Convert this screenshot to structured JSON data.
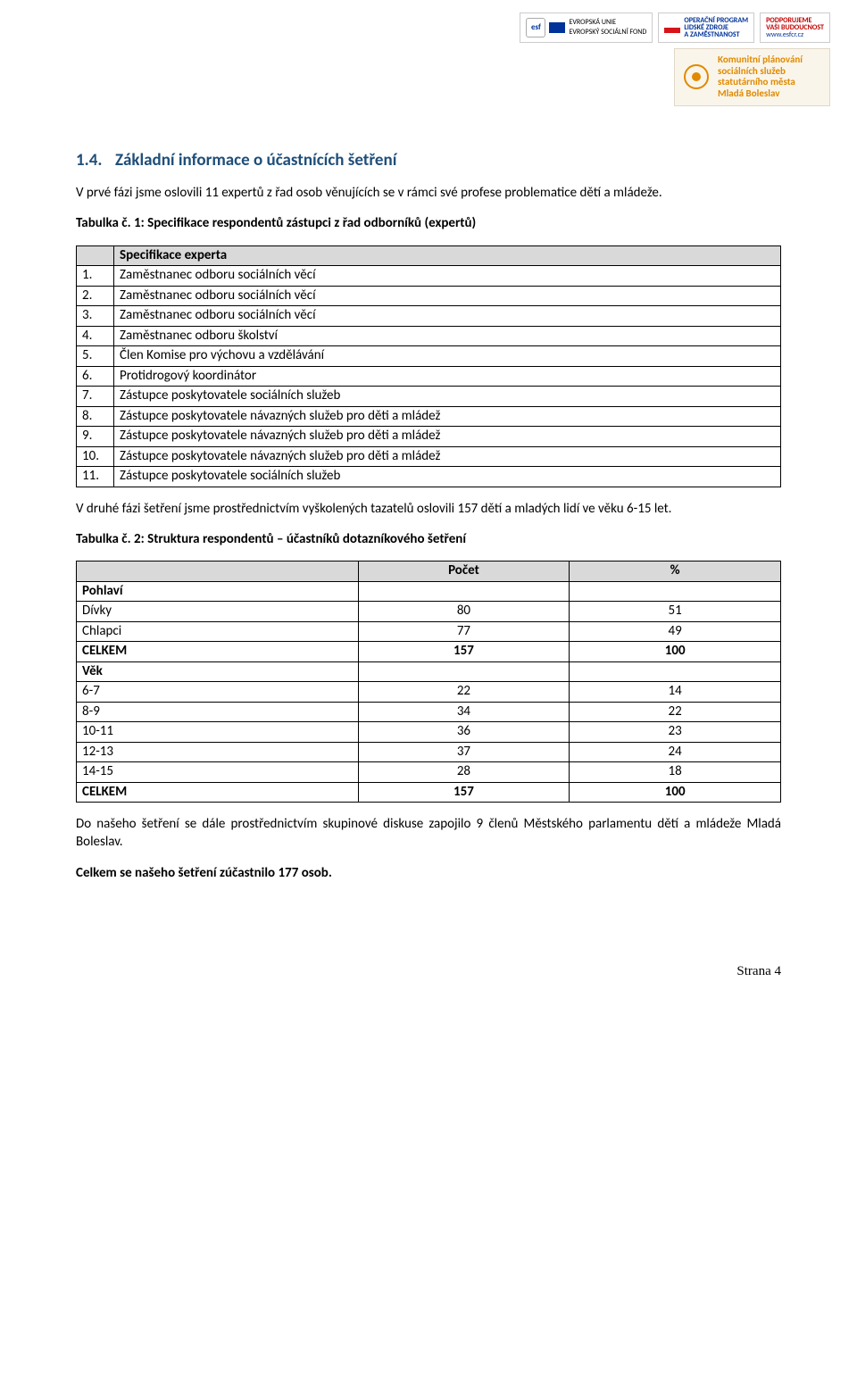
{
  "header": {
    "logo1_esf": "esf",
    "logo1_eu1": "EVROPSKÁ UNIE",
    "logo1_eu2": "EVROPSKÝ SOCIÁLNÍ FOND",
    "logo2_l1": "OPERAČNÍ PROGRAM",
    "logo2_l2": "LIDSKÉ ZDROJE",
    "logo2_l3": "A ZAMĚSTNANOST",
    "logo3_l1": "PODPORUJEME",
    "logo3_l2": "VAŠI BUDOUCNOST",
    "logo3_url": "www.esfcr.cz",
    "banner_l1": "Komunitní plánování",
    "banner_l2": "sociálních služeb",
    "banner_l3": "statutárního města",
    "banner_l4": "Mladá Boleslav"
  },
  "section": {
    "num": "1.4.",
    "title": "Základní informace o účastnících šetření"
  },
  "p1": "V prvé fázi jsme oslovili 11 expertů z řad osob věnujících se v rámci své profese problematice dětí a mládeže.",
  "t1": {
    "caption": "Tabulka č. 1: Specifikace respondentů zástupci z řad odborníků (expertů)",
    "header": "Specifikace experta",
    "rows": [
      {
        "n": "1.",
        "t": "Zaměstnanec odboru sociálních věcí"
      },
      {
        "n": "2.",
        "t": "Zaměstnanec odboru sociálních věcí"
      },
      {
        "n": "3.",
        "t": "Zaměstnanec odboru sociálních věcí"
      },
      {
        "n": "4.",
        "t": "Zaměstnanec odboru školství"
      },
      {
        "n": "5.",
        "t": "Člen Komise pro výchovu a vzdělávání"
      },
      {
        "n": "6.",
        "t": "Protidrogový koordinátor"
      },
      {
        "n": "7.",
        "t": "Zástupce poskytovatele sociálních služeb"
      },
      {
        "n": "8.",
        "t": "Zástupce poskytovatele návazných služeb pro děti a mládež"
      },
      {
        "n": "9.",
        "t": "Zástupce poskytovatele návazných služeb pro děti a mládež"
      },
      {
        "n": "10.",
        "t": "Zástupce poskytovatele návazných služeb pro děti a mládež"
      },
      {
        "n": "11.",
        "t": "Zástupce poskytovatele sociálních služeb"
      }
    ]
  },
  "p2": "V druhé fázi šetření jsme prostřednictvím vyškolených tazatelů oslovili 157 dětí a mladých lidí ve věku 6-15 let.",
  "t2": {
    "caption": "Tabulka č. 2: Struktura respondentů – účastníků dotazníkového šetření",
    "h_count": "Počet",
    "h_pct": "%",
    "rows": [
      {
        "label": "Pohlaví",
        "count": "",
        "pct": "",
        "bold": true
      },
      {
        "label": "Dívky",
        "count": "80",
        "pct": "51",
        "bold": false
      },
      {
        "label": "Chlapci",
        "count": "77",
        "pct": "49",
        "bold": false
      },
      {
        "label": "CELKEM",
        "count": "157",
        "pct": "100",
        "bold": true
      },
      {
        "label": "Věk",
        "count": "",
        "pct": "",
        "bold": true
      },
      {
        "label": "6-7",
        "count": "22",
        "pct": "14",
        "bold": false
      },
      {
        "label": "8-9",
        "count": "34",
        "pct": "22",
        "bold": false
      },
      {
        "label": "10-11",
        "count": "36",
        "pct": "23",
        "bold": false
      },
      {
        "label": "12-13",
        "count": "37",
        "pct": "24",
        "bold": false
      },
      {
        "label": "14-15",
        "count": "28",
        "pct": "18",
        "bold": false
      },
      {
        "label": "CELKEM",
        "count": "157",
        "pct": "100",
        "bold": true
      }
    ]
  },
  "p3": "Do našeho šetření se dále prostřednictvím skupinové diskuse zapojilo 9 členů Městského parlamentu dětí a mládeže Mladá Boleslav.",
  "p4": "Celkem se našeho šetření zúčastnilo 177 osob.",
  "footer": "Strana  4",
  "colors": {
    "heading": "#1f4e79",
    "table_header_bg": "#d9d9d9",
    "border": "#000000",
    "banner_bg": "#faf5ea",
    "banner_accent": "#e08a00"
  }
}
